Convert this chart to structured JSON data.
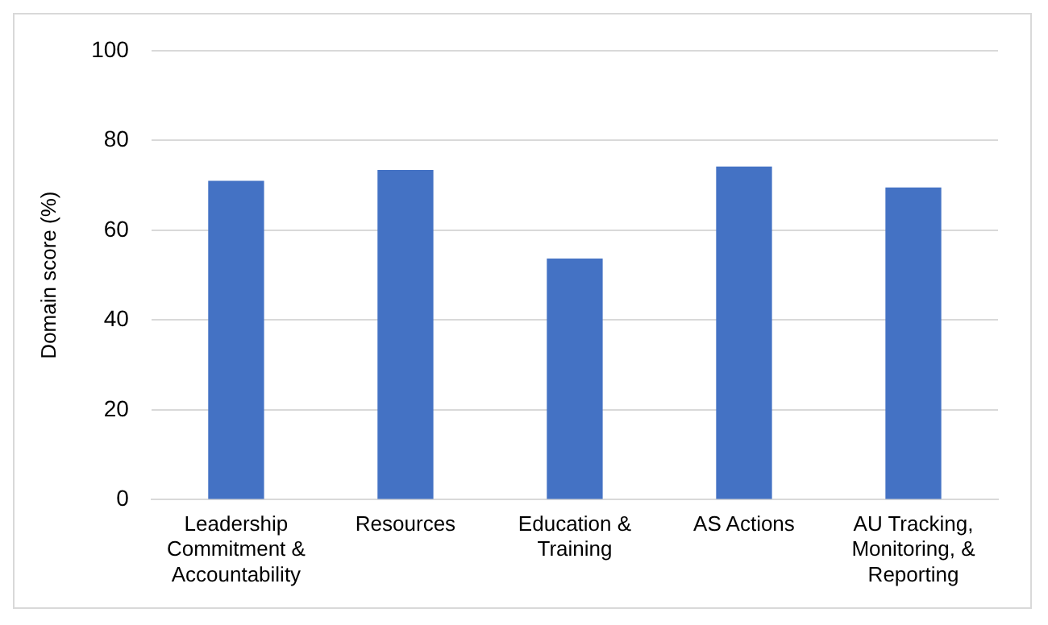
{
  "chart_data": {
    "type": "bar",
    "ylabel": "Domain score (%)",
    "categories": [
      "Leadership Commitment & Accountability",
      "Resources",
      "Education & Training",
      "AS Actions",
      "AU Tracking, Monitoring, & Reporting"
    ],
    "values": [
      71,
      73.4,
      53.7,
      74.2,
      69.5
    ],
    "color": "#4472c4",
    "ylim": [
      0,
      100
    ],
    "yticks": [
      0,
      20,
      40,
      60,
      80,
      100
    ],
    "grid": "y",
    "legend": false
  }
}
